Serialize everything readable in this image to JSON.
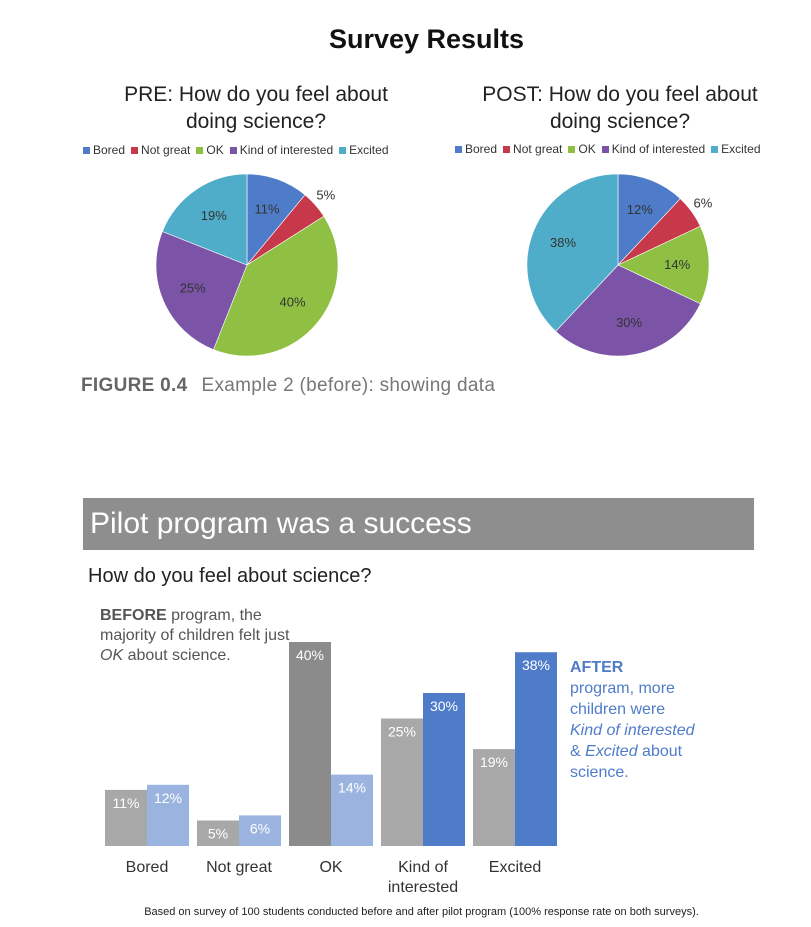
{
  "survey_title": "Survey Results",
  "colors": {
    "bored": "#4f7cc9",
    "not_great": "#c8384b",
    "ok": "#8fc043",
    "kind_of_interested": "#7b54a8",
    "excited": "#50adc9",
    "before_bar": "#a8a8a8",
    "before_bar_ok": "#8b8b8b",
    "after_bar": "#4f7cc9",
    "after_bar_light": "#9bb4df",
    "banner": "#8e8e8e"
  },
  "legend": [
    "Bored",
    "Not great",
    "OK",
    "Kind of interested",
    "Excited"
  ],
  "figure_caption": {
    "number": "FIGURE 0.4",
    "text": "Example 2 (before): showing data"
  },
  "banner_title": "Pilot program was a success",
  "question": "How do you feel about science?",
  "before_note": {
    "bold": "BEFORE",
    "rest": " program, the majority of children felt just ",
    "italic": "OK",
    "tail": " about science."
  },
  "after_note": {
    "bold": "AFTER",
    "line1": "program, more children were ",
    "italic1": "Kind of interested",
    "amp": " & ",
    "italic2": "Excited",
    "tail": " about science."
  },
  "footnote": "Based on survey of 100 students conducted before and after pilot program (100% response rate on both surveys).",
  "chart_data": [
    {
      "type": "pie",
      "title": "PRE: How do you feel about doing science?",
      "categories": [
        "Bored",
        "Not great",
        "OK",
        "Kind of interested",
        "Excited"
      ],
      "values": [
        11,
        5,
        40,
        25,
        19
      ],
      "labels": [
        "11%",
        "5%",
        "40%",
        "25%",
        "19%"
      ],
      "legend": "top"
    },
    {
      "type": "pie",
      "title": "POST: How do you feel about doing science?",
      "categories": [
        "Bored",
        "Not great",
        "OK",
        "Kind of interested",
        "Excited"
      ],
      "values": [
        12,
        6,
        14,
        30,
        38
      ],
      "labels": [
        "12%",
        "6%",
        "14%",
        "30%",
        "38%"
      ],
      "legend": "top"
    },
    {
      "type": "bar",
      "title": "How do you feel about science?",
      "categories": [
        "Bored",
        "Not great",
        "OK",
        "Kind of interested",
        "Excited"
      ],
      "series": [
        {
          "name": "BEFORE",
          "values": [
            11,
            5,
            40,
            25,
            19
          ],
          "labels": [
            "11%",
            "5%",
            "40%",
            "25%",
            "19%"
          ]
        },
        {
          "name": "AFTER",
          "values": [
            12,
            6,
            14,
            30,
            38
          ],
          "labels": [
            "12%",
            "6%",
            "14%",
            "30%",
            "38%"
          ]
        }
      ],
      "ylim": [
        0,
        40
      ],
      "grid": false
    }
  ]
}
